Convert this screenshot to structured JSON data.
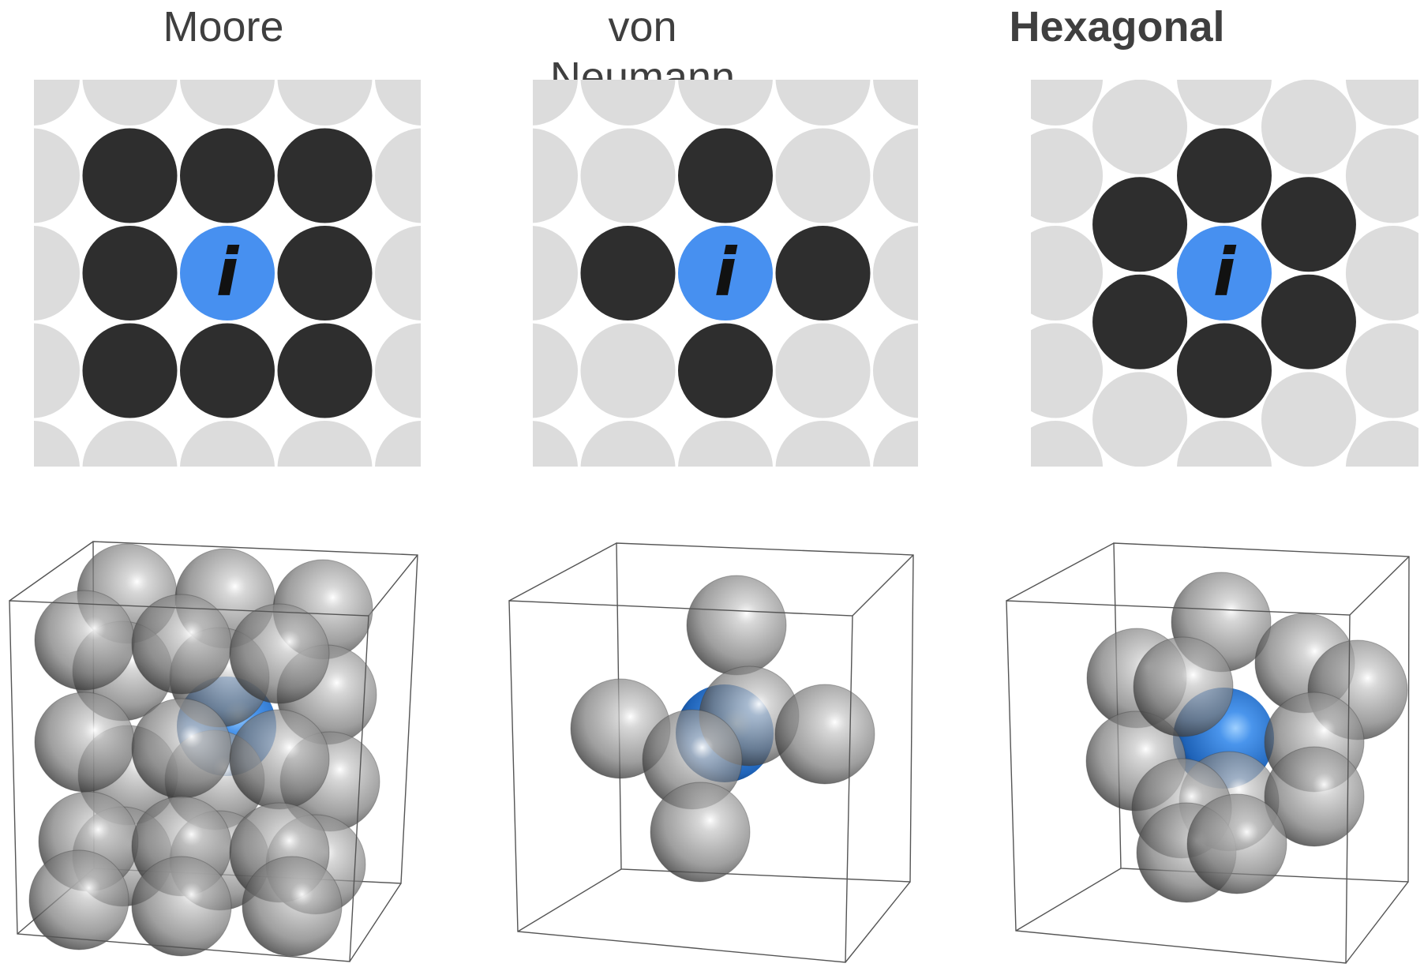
{
  "panels": [
    {
      "title": "Moore",
      "bold": false,
      "center_label": "i"
    },
    {
      "title": "von Neumann",
      "bold": false,
      "center_label": "i"
    },
    {
      "title": "Hexagonal",
      "bold": true,
      "center_label": "i"
    }
  ],
  "colors": {
    "background_cell": "#dcdcdc",
    "neighbor": "#2e2e2e",
    "center": "#4790f0",
    "title": "#3f3f3f",
    "center_label": "#111111",
    "sphere_gray": "#8a8a8a",
    "sphere_blue": "#3a85e0",
    "box_edge": "#555555"
  }
}
